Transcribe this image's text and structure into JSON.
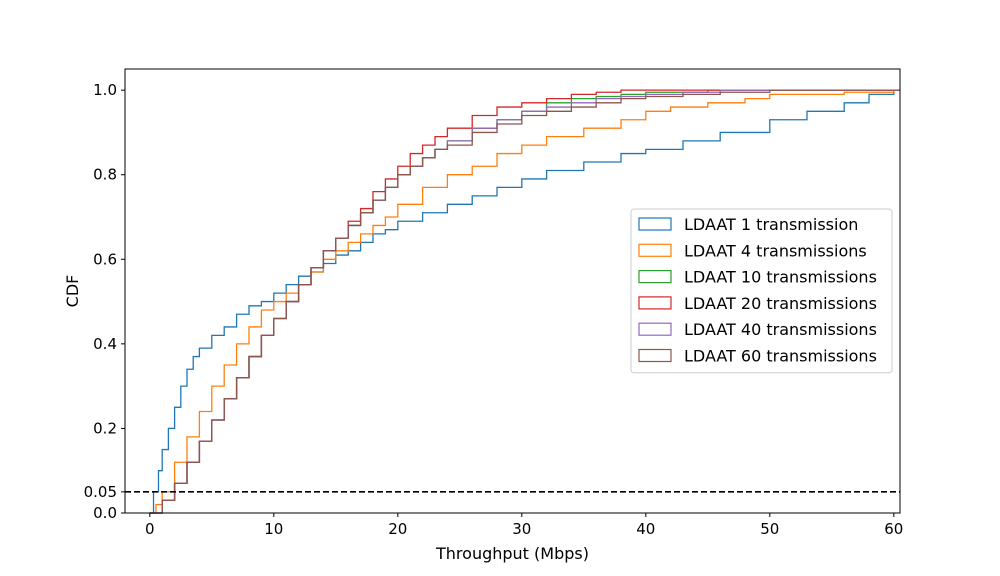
{
  "chart_data": {
    "type": "line",
    "title": "",
    "xlabel": "Throughput (Mbps)",
    "ylabel": "CDF",
    "xlim": [
      -2,
      60.5
    ],
    "ylim": [
      0,
      1.05
    ],
    "xticks": [
      0,
      10,
      20,
      30,
      40,
      50,
      60
    ],
    "xtick_labels": [
      "0",
      "10",
      "20",
      "30",
      "40",
      "50",
      "60"
    ],
    "yticks": [
      0.0,
      0.05,
      0.2,
      0.4,
      0.6,
      0.8,
      1.0
    ],
    "ytick_labels": [
      "0.0",
      "0.05",
      "0.2",
      "0.4",
      "0.6",
      "0.8",
      "1.0"
    ],
    "grid": false,
    "legend_position": "center-right",
    "reference_line": {
      "y": 0.05,
      "style": "dashed",
      "color": "#000000"
    },
    "series": [
      {
        "name": "LDAAT 1 transmission",
        "color": "#1f77b4",
        "x": [
          0,
          0.3,
          0.7,
          1.0,
          1.5,
          2.0,
          2.5,
          3.0,
          3.5,
          4.0,
          5.0,
          6.0,
          7.0,
          8.0,
          9.0,
          10.0,
          11.0,
          12.0,
          13.0,
          14.0,
          15.0,
          16.0,
          17.0,
          18.0,
          19.0,
          20.0,
          22.0,
          24.0,
          26.0,
          28.0,
          30.0,
          32.0,
          35.0,
          38.0,
          40.0,
          43.0,
          46.0,
          50.0,
          53.0,
          56.0,
          58.0,
          60.0
        ],
        "y": [
          0,
          0.05,
          0.1,
          0.15,
          0.2,
          0.25,
          0.3,
          0.34,
          0.37,
          0.39,
          0.42,
          0.44,
          0.47,
          0.49,
          0.5,
          0.52,
          0.54,
          0.56,
          0.57,
          0.59,
          0.61,
          0.62,
          0.64,
          0.66,
          0.67,
          0.69,
          0.71,
          0.73,
          0.75,
          0.77,
          0.79,
          0.81,
          0.83,
          0.85,
          0.86,
          0.88,
          0.9,
          0.93,
          0.95,
          0.97,
          0.99,
          1.0
        ]
      },
      {
        "name": "LDAAT 4 transmissions",
        "color": "#ff7f0e",
        "x": [
          0,
          0.5,
          1.0,
          2.0,
          3.0,
          4.0,
          5.0,
          6.0,
          7.0,
          8.0,
          9.0,
          10.0,
          11.0,
          12.0,
          13.0,
          14.0,
          15.0,
          16.0,
          17.0,
          18.0,
          19.0,
          20.0,
          22.0,
          24.0,
          26.0,
          28.0,
          30.0,
          32.0,
          35.0,
          38.0,
          40.0,
          42.0,
          45.0,
          48.0,
          50.0,
          53.0,
          56.0,
          60.0
        ],
        "y": [
          0,
          0.02,
          0.05,
          0.12,
          0.18,
          0.24,
          0.3,
          0.35,
          0.4,
          0.44,
          0.48,
          0.5,
          0.52,
          0.54,
          0.57,
          0.6,
          0.62,
          0.64,
          0.66,
          0.68,
          0.7,
          0.73,
          0.77,
          0.8,
          0.82,
          0.85,
          0.87,
          0.89,
          0.91,
          0.93,
          0.95,
          0.96,
          0.97,
          0.98,
          0.99,
          0.99,
          0.995,
          1.0
        ]
      },
      {
        "name": "LDAAT 10 transmissions",
        "color": "#2ca02c",
        "x": [
          0,
          1.0,
          2.0,
          3.0,
          4.0,
          5.0,
          6.0,
          7.0,
          8.0,
          9.0,
          10.0,
          11.0,
          12.0,
          13.0,
          14.0,
          15.0,
          16.0,
          17.0,
          18.0,
          19.0,
          20.0,
          21.0,
          22.0,
          23.0,
          24.0,
          26.0,
          28.0,
          30.0,
          32.0,
          34.0,
          36.0,
          38.0,
          40.0,
          45.0,
          50.0,
          60.0
        ],
        "y": [
          0,
          0.03,
          0.07,
          0.12,
          0.17,
          0.22,
          0.27,
          0.32,
          0.37,
          0.42,
          0.46,
          0.5,
          0.54,
          0.58,
          0.62,
          0.65,
          0.68,
          0.71,
          0.74,
          0.77,
          0.8,
          0.82,
          0.84,
          0.86,
          0.88,
          0.91,
          0.93,
          0.95,
          0.97,
          0.98,
          0.985,
          0.99,
          0.995,
          1.0,
          1.0,
          1.0
        ]
      },
      {
        "name": "LDAAT 20 transmissions",
        "color": "#d62728",
        "x": [
          0,
          1.0,
          2.0,
          3.0,
          4.0,
          5.0,
          6.0,
          7.0,
          8.0,
          9.0,
          10.0,
          11.0,
          12.0,
          13.0,
          14.0,
          15.0,
          16.0,
          17.0,
          18.0,
          19.0,
          20.0,
          21.0,
          22.0,
          23.0,
          24.0,
          26.0,
          28.0,
          30.0,
          32.0,
          34.0,
          36.0,
          38.0,
          40.0,
          45.0,
          60.0
        ],
        "y": [
          0,
          0.03,
          0.07,
          0.12,
          0.17,
          0.22,
          0.27,
          0.32,
          0.37,
          0.42,
          0.46,
          0.5,
          0.54,
          0.58,
          0.62,
          0.65,
          0.69,
          0.72,
          0.76,
          0.79,
          0.82,
          0.85,
          0.87,
          0.89,
          0.91,
          0.94,
          0.96,
          0.97,
          0.98,
          0.99,
          0.995,
          1.0,
          1.0,
          1.0,
          1.0
        ]
      },
      {
        "name": "LDAAT 40 transmissions",
        "color": "#9467bd",
        "x": [
          0,
          1.0,
          2.0,
          3.0,
          4.0,
          5.0,
          6.0,
          7.0,
          8.0,
          9.0,
          10.0,
          11.0,
          12.0,
          13.0,
          14.0,
          15.0,
          16.0,
          17.0,
          18.0,
          19.0,
          20.0,
          21.0,
          22.0,
          23.0,
          24.0,
          26.0,
          28.0,
          30.0,
          32.0,
          34.0,
          36.0,
          38.0,
          40.0,
          43.0,
          46.0,
          50.0,
          60.0
        ],
        "y": [
          0,
          0.03,
          0.07,
          0.12,
          0.17,
          0.22,
          0.27,
          0.32,
          0.37,
          0.42,
          0.46,
          0.5,
          0.54,
          0.58,
          0.62,
          0.65,
          0.68,
          0.71,
          0.74,
          0.77,
          0.8,
          0.82,
          0.84,
          0.86,
          0.88,
          0.91,
          0.93,
          0.95,
          0.96,
          0.97,
          0.98,
          0.985,
          0.99,
          0.995,
          1.0,
          1.0,
          1.0
        ]
      },
      {
        "name": "LDAAT 60 transmissions",
        "color": "#8c564b",
        "x": [
          0,
          1.0,
          2.0,
          3.0,
          4.0,
          5.0,
          6.0,
          7.0,
          8.0,
          9.0,
          10.0,
          11.0,
          12.0,
          13.0,
          14.0,
          15.0,
          16.0,
          17.0,
          18.0,
          19.0,
          20.0,
          21.0,
          22.0,
          23.0,
          24.0,
          26.0,
          28.0,
          30.0,
          32.0,
          34.0,
          36.0,
          38.0,
          40.0,
          43.0,
          46.0,
          50.0,
          60.0
        ],
        "y": [
          0,
          0.03,
          0.07,
          0.12,
          0.17,
          0.22,
          0.27,
          0.32,
          0.37,
          0.42,
          0.46,
          0.5,
          0.54,
          0.58,
          0.62,
          0.65,
          0.68,
          0.71,
          0.74,
          0.77,
          0.8,
          0.82,
          0.84,
          0.86,
          0.87,
          0.9,
          0.92,
          0.94,
          0.95,
          0.96,
          0.97,
          0.98,
          0.985,
          0.99,
          0.995,
          1.0,
          1.0
        ]
      }
    ]
  }
}
